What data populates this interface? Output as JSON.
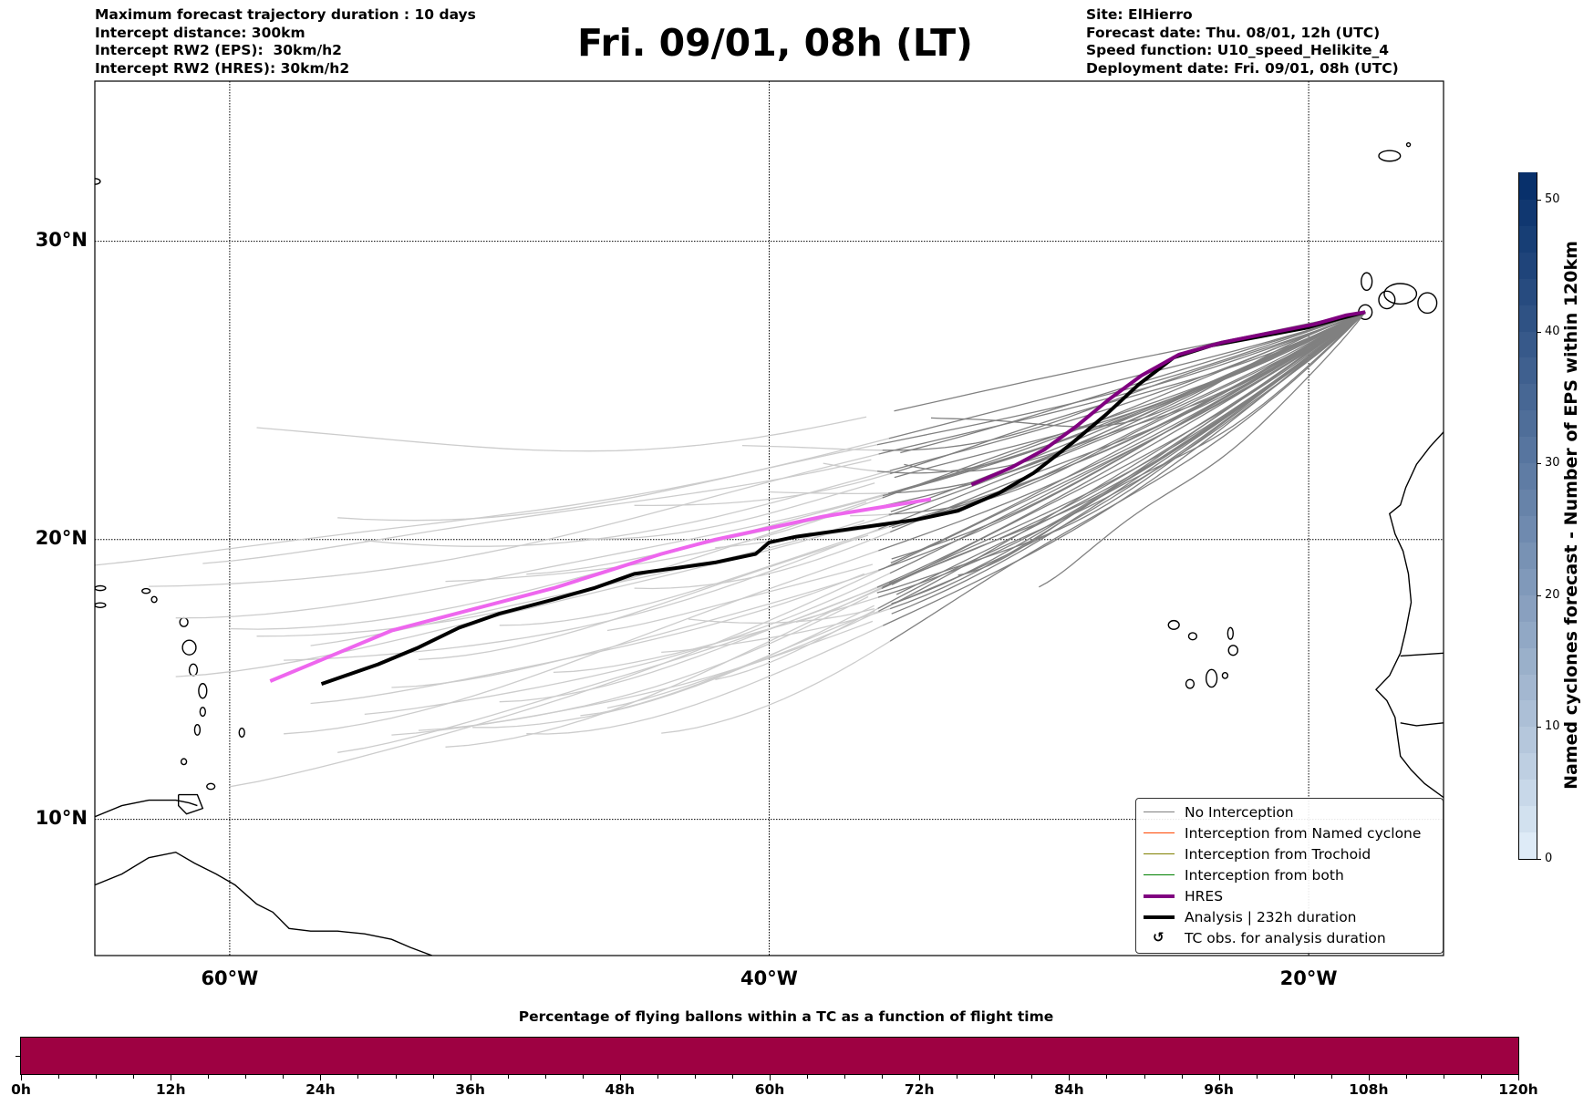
{
  "header": {
    "left_lines": [
      "Maximum forecast trajectory duration : 10 days",
      "Intercept distance: 300km",
      "Intercept RW2 (EPS):  30km/h2",
      "Intercept RW2 (HRES): 30km/h2"
    ],
    "title": "Fri. 09/01, 08h (LT)",
    "right_lines": [
      "Site: ElHierro",
      "Forecast date: Thu. 08/01, 12h (UTC)",
      "Speed function: U10_speed_Helikite_4",
      "Deployment date: Fri. 09/01, 08h (UTC)"
    ]
  },
  "map": {
    "projection": "mercator",
    "extent": {
      "lon_min": -65,
      "lon_max": -15,
      "lat_min": 5,
      "lat_max": 35
    },
    "lat_gridlines": [
      10,
      20,
      30
    ],
    "lon_gridlines": [
      -60,
      -40,
      -20
    ],
    "lat_labels": [
      "10°N",
      "20°N",
      "30°N"
    ],
    "lon_labels": [
      "60°W",
      "40°W",
      "20°W"
    ],
    "site": {
      "name": "ElHierro",
      "lon": -17.9,
      "lat": 27.7
    },
    "colors": {
      "no_interception": "#808080",
      "no_interception_light": "#cccccc",
      "named_cyclone": "#ff4500",
      "trochoid": "#808000",
      "both": "#008000",
      "hres": "#800080",
      "hres_light": "#ee66ee",
      "analysis": "#000000"
    },
    "hres_track": [
      [
        -17.9,
        27.7
      ],
      [
        -18.6,
        27.6
      ],
      [
        -19.8,
        27.3
      ],
      [
        -21.5,
        27.0
      ],
      [
        -23.2,
        26.7
      ],
      [
        -24.8,
        26.3
      ],
      [
        -26.2,
        25.6
      ],
      [
        -27.4,
        24.8
      ],
      [
        -28.6,
        23.9
      ],
      [
        -29.8,
        23.1
      ],
      [
        -31.0,
        22.5
      ],
      [
        -32.5,
        21.9
      ],
      [
        -34.0,
        21.4
      ],
      [
        -36.0,
        21.1
      ],
      [
        -38.0,
        20.8
      ],
      [
        -40.0,
        20.4
      ],
      [
        -42.0,
        20.0
      ],
      [
        -44.0,
        19.5
      ],
      [
        -46.0,
        18.9
      ],
      [
        -48.0,
        18.3
      ],
      [
        -50.0,
        17.8
      ],
      [
        -52.0,
        17.3
      ],
      [
        -54.0,
        16.8
      ],
      [
        -56.0,
        16.0
      ],
      [
        -58.5,
        15.0
      ]
    ],
    "hres_dark_until_lon": -33.3,
    "analysis_track": [
      [
        -17.9,
        27.7
      ],
      [
        -18.8,
        27.5
      ],
      [
        -20.0,
        27.2
      ],
      [
        -21.8,
        26.9
      ],
      [
        -23.6,
        26.6
      ],
      [
        -25.0,
        26.2
      ],
      [
        -26.3,
        25.3
      ],
      [
        -27.5,
        24.3
      ],
      [
        -28.8,
        23.3
      ],
      [
        -30.2,
        22.3
      ],
      [
        -31.5,
        21.6
      ],
      [
        -33.0,
        21.0
      ],
      [
        -34.5,
        20.7
      ],
      [
        -36.0,
        20.5
      ],
      [
        -37.5,
        20.3
      ],
      [
        -39.0,
        20.1
      ],
      [
        -40.0,
        19.9
      ],
      [
        -40.5,
        19.5
      ],
      [
        -42.0,
        19.2
      ],
      [
        -43.5,
        19.0
      ],
      [
        -45.0,
        18.8
      ],
      [
        -46.5,
        18.3
      ],
      [
        -48.0,
        17.9
      ],
      [
        -50.0,
        17.4
      ],
      [
        -51.5,
        16.9
      ],
      [
        -53.0,
        16.2
      ],
      [
        -54.5,
        15.6
      ],
      [
        -56.6,
        14.9
      ]
    ],
    "eps_tracks": [
      {
        "start_lon": -57,
        "start_lat": 14.2,
        "bend": 0.0
      },
      {
        "start_lon": -55,
        "start_lat": 13.6,
        "bend": 0.3
      },
      {
        "start_lon": -53,
        "start_lat": 13.0,
        "bend": 0.5
      },
      {
        "start_lon": -51,
        "start_lat": 13.3,
        "bend": 0.2
      },
      {
        "start_lon": -49,
        "start_lat": 13.3,
        "bend": -0.2
      },
      {
        "start_lon": -47,
        "start_lat": 14.0,
        "bend": 0.4
      },
      {
        "start_lon": -56,
        "start_lat": 12.5,
        "bend": 0.6
      },
      {
        "start_lon": -54,
        "start_lat": 12.9,
        "bend": -0.1
      },
      {
        "start_lon": -58,
        "start_lat": 15.5,
        "bend": 0.1
      },
      {
        "start_lon": -59,
        "start_lat": 16.5,
        "bend": 0.3
      },
      {
        "start_lon": -60,
        "start_lat": 17.0,
        "bend": 0.0
      },
      {
        "start_lon": -62,
        "start_lat": 17.5,
        "bend": -0.3
      },
      {
        "start_lon": -61,
        "start_lat": 19.3,
        "bend": 0.2
      },
      {
        "start_lon": -65,
        "start_lat": 19.0,
        "bend": 0.5
      },
      {
        "start_lon": -59,
        "start_lat": 23.6,
        "bend": -1.0
      },
      {
        "start_lon": -63,
        "start_lat": 18.2,
        "bend": 0.4
      },
      {
        "start_lon": -52,
        "start_lat": 12.7,
        "bend": 0.8
      },
      {
        "start_lon": -50,
        "start_lat": 14.5,
        "bend": 0.1
      },
      {
        "start_lon": -48,
        "start_lat": 15.5,
        "bend": -0.4
      },
      {
        "start_lon": -46,
        "start_lat": 14.0,
        "bend": 0.6
      },
      {
        "start_lon": -44,
        "start_lat": 15.8,
        "bend": 0.0
      },
      {
        "start_lon": -43,
        "start_lat": 17.0,
        "bend": -0.6
      },
      {
        "start_lon": -45,
        "start_lat": 18.3,
        "bend": 0.2
      },
      {
        "start_lon": -50,
        "start_lat": 17.2,
        "bend": 0.1
      },
      {
        "start_lon": -54,
        "start_lat": 15.0,
        "bend": -0.2
      },
      {
        "start_lon": -57,
        "start_lat": 16.3,
        "bend": 0.5
      },
      {
        "start_lon": -60,
        "start_lat": 11.0,
        "bend": 1.2
      },
      {
        "start_lon": -52,
        "start_lat": 18.3,
        "bend": 0.3
      },
      {
        "start_lon": -55,
        "start_lat": 19.9,
        "bend": -0.5
      },
      {
        "start_lon": -47,
        "start_lat": 20.2,
        "bend": 0.0
      },
      {
        "start_lon": -42,
        "start_lat": 15.3,
        "bend": 0.9
      },
      {
        "start_lon": -39,
        "start_lat": 17.2,
        "bend": 0.7
      },
      {
        "start_lon": -36,
        "start_lat": 18.0,
        "bend": 0.5
      },
      {
        "start_lon": -40,
        "start_lat": 21.4,
        "bend": -0.3
      },
      {
        "start_lon": -38,
        "start_lat": 22.5,
        "bend": -0.5
      },
      {
        "start_lon": -35,
        "start_lat": 22.7,
        "bend": -0.6
      },
      {
        "start_lon": -33,
        "start_lat": 19.0,
        "bend": 0.6
      },
      {
        "start_lon": -30,
        "start_lat": 18.5,
        "bend": 0.9
      },
      {
        "start_lon": -34,
        "start_lat": 24.1,
        "bend": -0.8
      },
      {
        "start_lon": -41,
        "start_lat": 23.0,
        "bend": -0.4
      },
      {
        "start_lon": -45,
        "start_lat": 21.0,
        "bend": 0.2
      },
      {
        "start_lon": -56,
        "start_lat": 20.8,
        "bend": -0.2
      },
      {
        "start_lon": -53,
        "start_lat": 16.0,
        "bend": 0.4
      },
      {
        "start_lon": -49,
        "start_lat": 19.0,
        "bend": -0.1
      },
      {
        "start_lon": -46,
        "start_lat": 16.8,
        "bend": 0.3
      },
      {
        "start_lon": -42,
        "start_lat": 19.5,
        "bend": 0.1
      },
      {
        "start_lon": -37,
        "start_lat": 20.6,
        "bend": 0.2
      },
      {
        "start_lon": -44,
        "start_lat": 13.1,
        "bend": 1.0
      },
      {
        "start_lon": -58,
        "start_lat": 13.3,
        "bend": 0.7
      },
      {
        "start_lon": -62,
        "start_lat": 15.4,
        "bend": 0.2
      }
    ],
    "dark_from_lon": -36
  },
  "legend": {
    "items": [
      {
        "label": "No Interception",
        "style": "thin",
        "color": "#808080"
      },
      {
        "label": "Interception from Named cyclone",
        "style": "thin",
        "color": "#ff4500"
      },
      {
        "label": "Interception from Trochoid",
        "style": "thin",
        "color": "#808000"
      },
      {
        "label": "Interception from both",
        "style": "thin",
        "color": "#008000"
      },
      {
        "label": "HRES",
        "style": "thick",
        "color": "#800080"
      },
      {
        "label": "Analysis | 232h duration",
        "style": "thick",
        "color": "#000000"
      },
      {
        "label": "TC obs. for analysis duration",
        "style": "marker",
        "color": "#000000",
        "marker": "↺"
      }
    ]
  },
  "colorbar": {
    "label": "Named cyclones forecast - Number of EPS within 120km",
    "min": 0,
    "max": 52,
    "ticks": [
      0,
      10,
      20,
      30,
      40,
      50
    ],
    "color_low": "#deebf7",
    "color_high": "#08306b",
    "levels": 26
  },
  "chart_data": {
    "type": "bar",
    "title": "Percentage of flying ballons within a TC as a function of flight time",
    "xlabel": "",
    "ylabel": "",
    "x_range": [
      0,
      120
    ],
    "x_ticks": [
      "0h",
      "12h",
      "24h",
      "36h",
      "48h",
      "60h",
      "72h",
      "84h",
      "96h",
      "108h",
      "120h"
    ],
    "x_minor_step_hours": 3,
    "series": [
      {
        "name": "percentage_within_TC",
        "from_hour": 0,
        "to_hour": 120,
        "value_percent": 0,
        "color": "#9e0142"
      }
    ]
  }
}
